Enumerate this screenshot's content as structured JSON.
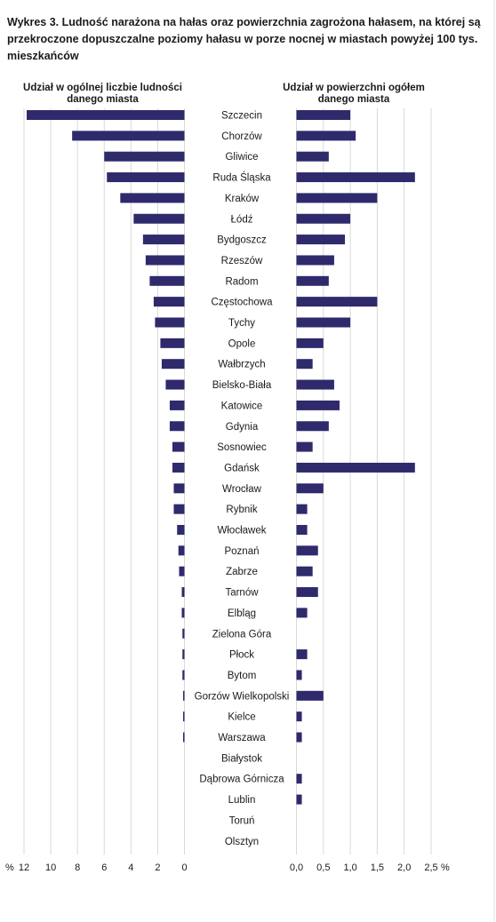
{
  "title_prefix": "Wykres 3.",
  "title_text": "Ludność narażona na hałas oraz powierzchnia zagrożona hałasem, na której są przekroczone dopuszczalne poziomy hałasu w porze nocnej w miastach powyżej 100 tys. mieszkańców",
  "chart_data": {
    "type": "bar",
    "orientation": "horizontal",
    "bar_color": "#2e2a6b",
    "grid": true,
    "categories": [
      "Szczecin",
      "Chorzów",
      "Gliwice",
      "Ruda Śląska",
      "Kraków",
      "Łódź",
      "Bydgoszcz",
      "Rzeszów",
      "Radom",
      "Częstochowa",
      "Tychy",
      "Opole",
      "Wałbrzych",
      "Bielsko-Biała",
      "Katowice",
      "Gdynia",
      "Sosnowiec",
      "Gdańsk",
      "Wrocław",
      "Rybnik",
      "Włocławek",
      "Poznań",
      "Zabrze",
      "Tarnów",
      "Elbląg",
      "Zielona Góra",
      "Płock",
      "Bytom",
      "Gorzów Wielkopolski",
      "Kielce",
      "Warszawa",
      "Białystok",
      "Dąbrowa Górnicza",
      "Lublin",
      "Toruń",
      "Olsztyn"
    ],
    "panels": [
      {
        "label": "Udział w ogólnej liczbie ludności danego miasta",
        "direction": "left",
        "xlim": [
          0,
          12
        ],
        "ticks": [
          "12",
          "10",
          "8",
          "6",
          "4",
          "2",
          "0"
        ],
        "tick_values": [
          12,
          10,
          8,
          6,
          4,
          2,
          0
        ],
        "unit": "%",
        "values": [
          11.8,
          8.4,
          6.0,
          5.8,
          4.8,
          3.8,
          3.1,
          2.9,
          2.6,
          2.3,
          2.2,
          1.8,
          1.7,
          1.4,
          1.1,
          1.1,
          0.9,
          0.9,
          0.8,
          0.8,
          0.55,
          0.45,
          0.4,
          0.2,
          0.2,
          0.15,
          0.15,
          0.15,
          0.1,
          0.1,
          0.1,
          0,
          0,
          0,
          0,
          0
        ]
      },
      {
        "label": "Udział w powierzchni ogółem danego miasta",
        "direction": "right",
        "xlim": [
          0,
          2.5
        ],
        "ticks": [
          "0,0",
          "0,5",
          "1,0",
          "1,5",
          "2,0",
          "2,5"
        ],
        "tick_values": [
          0,
          0.5,
          1.0,
          1.5,
          2.0,
          2.5
        ],
        "unit": "%",
        "values": [
          1.0,
          1.1,
          0.6,
          2.2,
          1.5,
          1.0,
          0.9,
          0.7,
          0.6,
          1.5,
          1.0,
          0.5,
          0.3,
          0.7,
          0.8,
          0.6,
          0.3,
          2.2,
          0.5,
          0.2,
          0.2,
          0.4,
          0.3,
          0.4,
          0.2,
          0,
          0.2,
          0.1,
          0.5,
          0.1,
          0.1,
          0,
          0.1,
          0.1,
          0,
          0
        ]
      }
    ]
  }
}
